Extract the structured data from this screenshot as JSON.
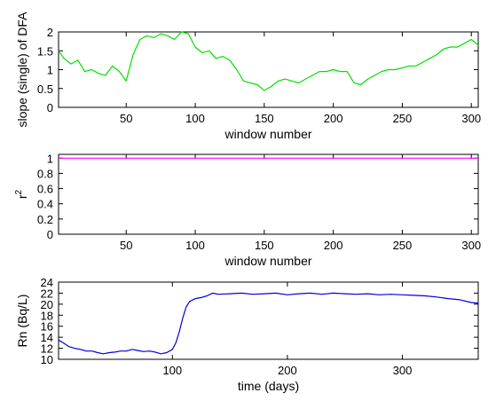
{
  "chart_data": [
    {
      "type": "line",
      "xlabel": "window number",
      "ylabel": "slope (single) of DFA",
      "xlim": [
        1,
        305
      ],
      "ylim": [
        0,
        2
      ],
      "xticks": [
        50,
        100,
        150,
        200,
        250,
        300
      ],
      "yticks": [
        0,
        0.5,
        1,
        1.5,
        2
      ],
      "grid": false,
      "colors": {
        "line": "#00e000"
      },
      "series": [
        {
          "x": [
            1,
            5,
            10,
            15,
            20,
            25,
            30,
            35,
            40,
            45,
            50,
            55,
            60,
            65,
            70,
            75,
            80,
            85,
            90,
            95,
            100,
            105,
            110,
            115,
            120,
            125,
            130,
            135,
            140,
            145,
            150,
            155,
            160,
            165,
            170,
            175,
            180,
            185,
            190,
            195,
            200,
            205,
            210,
            215,
            220,
            225,
            230,
            235,
            240,
            245,
            250,
            255,
            260,
            265,
            270,
            275,
            280,
            285,
            290,
            295,
            300,
            305
          ],
          "values": [
            1.5,
            1.3,
            1.15,
            1.25,
            0.95,
            1.0,
            0.9,
            0.85,
            1.1,
            0.95,
            0.7,
            1.4,
            1.8,
            1.9,
            1.85,
            1.95,
            1.9,
            1.8,
            2.0,
            1.95,
            1.6,
            1.45,
            1.5,
            1.3,
            1.35,
            1.25,
            1.0,
            0.7,
            0.65,
            0.6,
            0.45,
            0.55,
            0.7,
            0.75,
            0.7,
            0.65,
            0.75,
            0.85,
            0.95,
            0.95,
            1.0,
            0.95,
            0.95,
            0.65,
            0.6,
            0.75,
            0.85,
            0.95,
            1.0,
            1.0,
            1.05,
            1.1,
            1.1,
            1.2,
            1.3,
            1.4,
            1.55,
            1.6,
            1.6,
            1.7,
            1.8,
            1.65
          ]
        }
      ]
    },
    {
      "type": "line",
      "xlabel": "window number",
      "ylabel": "r",
      "ylabel_sup": "2",
      "xlim": [
        1,
        305
      ],
      "ylim": [
        0,
        1.05
      ],
      "xticks": [
        50,
        100,
        150,
        200,
        250,
        300
      ],
      "yticks": [
        0,
        0.2,
        0.4,
        0.6,
        0.8,
        1
      ],
      "grid": false,
      "colors": {
        "line": "#ff00ff"
      },
      "series": [
        {
          "x": [
            1,
            305
          ],
          "values": [
            1.0,
            1.0
          ]
        }
      ]
    },
    {
      "type": "line",
      "xlabel": "time (days)",
      "ylabel": "Rn (Bq/L)",
      "xlim": [
        1,
        366
      ],
      "ylim": [
        10,
        24
      ],
      "xticks": [
        100,
        200,
        300
      ],
      "yticks": [
        10,
        12,
        14,
        16,
        18,
        20,
        22,
        24
      ],
      "grid": false,
      "colors": {
        "line": "#0000dd"
      },
      "series": [
        {
          "x": [
            1,
            5,
            10,
            15,
            20,
            25,
            30,
            35,
            40,
            45,
            50,
            55,
            60,
            65,
            70,
            75,
            80,
            85,
            90,
            95,
            100,
            103,
            106,
            109,
            112,
            115,
            120,
            125,
            130,
            135,
            140,
            150,
            160,
            170,
            180,
            190,
            200,
            210,
            220,
            230,
            240,
            250,
            260,
            270,
            280,
            290,
            300,
            310,
            320,
            330,
            340,
            350,
            360,
            366
          ],
          "values": [
            13.5,
            13.0,
            12.3,
            12.0,
            11.8,
            11.5,
            11.5,
            11.2,
            11.0,
            11.2,
            11.3,
            11.5,
            11.5,
            11.8,
            11.6,
            11.4,
            11.5,
            11.3,
            11.0,
            11.2,
            11.8,
            13.0,
            15.0,
            17.5,
            19.5,
            20.5,
            21.0,
            21.2,
            21.5,
            22.0,
            21.8,
            21.9,
            22.0,
            21.8,
            21.9,
            22.0,
            21.7,
            21.9,
            22.0,
            21.8,
            22.0,
            21.9,
            21.8,
            21.9,
            21.7,
            21.8,
            21.7,
            21.6,
            21.5,
            21.3,
            21.0,
            20.8,
            20.3,
            20.2
          ]
        }
      ]
    }
  ]
}
